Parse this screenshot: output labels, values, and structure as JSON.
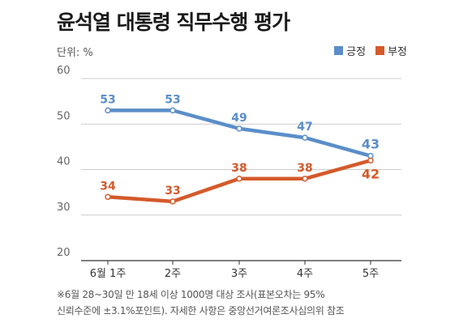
{
  "title": "윤석열 대통령 직무수행 평가",
  "unit_label": "단위: %",
  "note_line1": "※6월 28~30일 만 18세 이상 1000명 대상 조사(표본오차는 95%",
  "note_line2": "신뢰수준에 ±3.1%포인트). 자세한 사항은 중앙선거여론조사심의위 참조",
  "chart_data": {
    "type": "line",
    "title": "윤석열 대통령 직무수행 평가",
    "xlabel": "",
    "ylabel": "",
    "categories": [
      "6월 1주",
      "2주",
      "3주",
      "4주",
      "5주"
    ],
    "ylim": [
      20,
      60
    ],
    "yticks": [
      20,
      30,
      40,
      50,
      60
    ],
    "grid": true,
    "legend": "top-right",
    "series": [
      {
        "name": "긍정",
        "color": "#5b8ec9",
        "values": [
          53,
          53,
          49,
          47,
          43
        ]
      },
      {
        "name": "부정",
        "color": "#d45a2b",
        "values": [
          34,
          33,
          38,
          38,
          42
        ]
      }
    ]
  }
}
